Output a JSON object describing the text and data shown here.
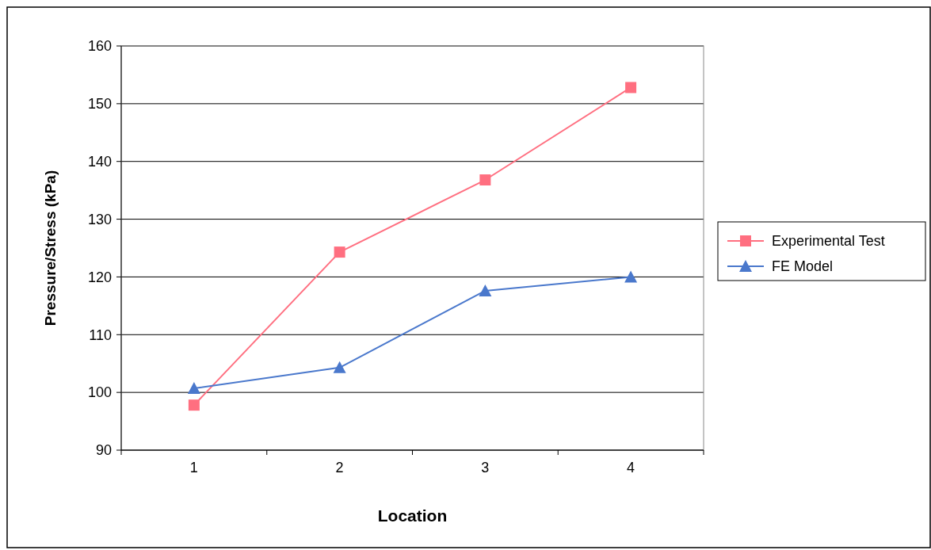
{
  "chart_data": {
    "type": "line",
    "xlabel": "Location",
    "ylabel": "Pressure/Stress (kPa)",
    "categories": [
      "1",
      "2",
      "3",
      "4"
    ],
    "series": [
      {
        "name": "Experimental Test",
        "color": "#ff6f80",
        "marker": "square",
        "values": [
          97.8,
          124.3,
          136.8,
          152.8
        ]
      },
      {
        "name": "FE Model",
        "color": "#4a78cc",
        "marker": "triangle",
        "values": [
          100.7,
          104.3,
          117.6,
          120
        ]
      }
    ],
    "ylim": [
      90,
      160
    ],
    "yticks": [
      90,
      100,
      110,
      120,
      130,
      140,
      150,
      160
    ],
    "grid": "y",
    "legend": "right",
    "line_style": "solid"
  }
}
